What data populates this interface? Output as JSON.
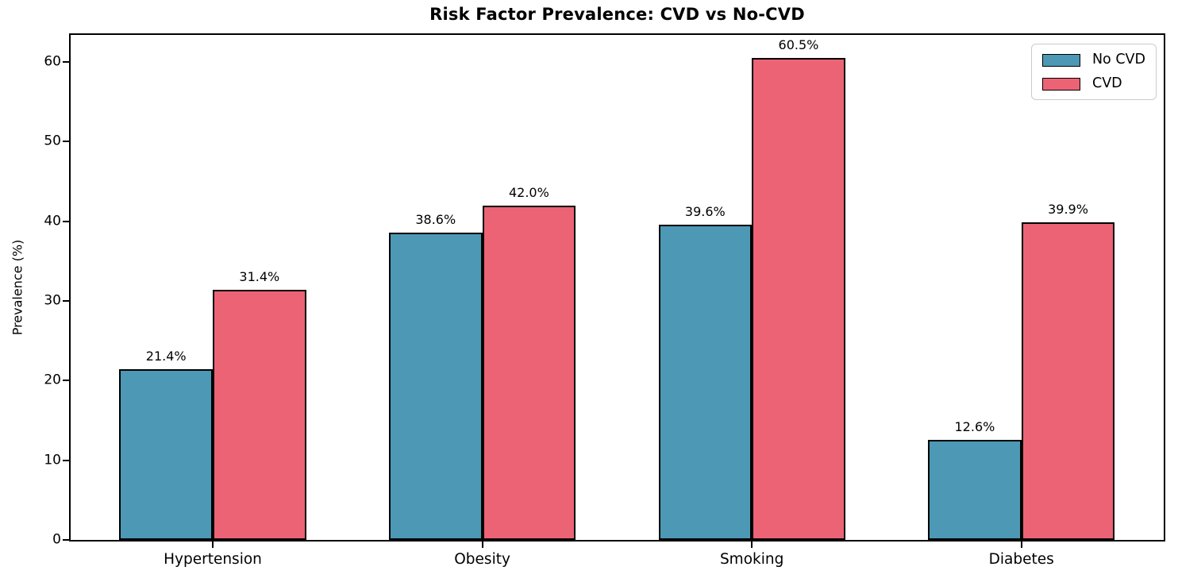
{
  "figure": {
    "background": "#ffffff"
  },
  "chart_data": {
    "type": "bar",
    "title": "Risk Factor Prevalence: CVD vs No-CVD",
    "xlabel": "",
    "ylabel": "Prevalence (%)",
    "categories": [
      "Hypertension",
      "Obesity",
      "Smoking",
      "Diabetes"
    ],
    "series": [
      {
        "name": "No CVD",
        "color": "#4C98B5",
        "values": [
          21.4,
          38.6,
          39.6,
          12.6
        ],
        "labels": [
          "21.4%",
          "38.6%",
          "39.6%",
          "12.6%"
        ]
      },
      {
        "name": "CVD",
        "color": "#EC6375",
        "values": [
          31.4,
          42.0,
          60.5,
          39.9
        ],
        "labels": [
          "31.4%",
          "42.0%",
          "60.5%",
          "39.9%"
        ]
      }
    ],
    "yticks": [
      0,
      10,
      20,
      30,
      40,
      50,
      60
    ],
    "ylim": [
      0,
      63.4
    ],
    "grid": false,
    "legend_position": "upper-right",
    "bar_edge_color": "#000000",
    "axis_color": "#000000"
  }
}
